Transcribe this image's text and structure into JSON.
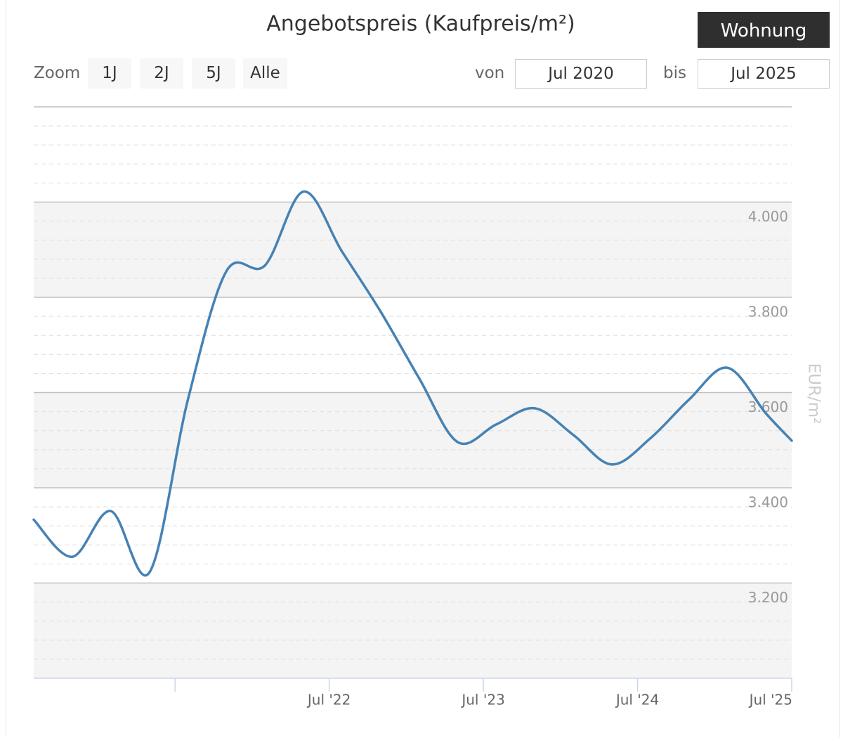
{
  "chart_data": {
    "type": "line",
    "title": "Angebotspreis (Kaufpreis/m²)",
    "y_axis_label": "EUR/m²",
    "x": [
      "2020-08",
      "2020-11",
      "2021-02",
      "2021-05",
      "2021-08",
      "2021-11",
      "2022-02",
      "2022-05",
      "2022-08",
      "2022-11",
      "2023-02",
      "2023-05",
      "2023-08",
      "2023-11",
      "2024-02",
      "2024-05",
      "2024-08",
      "2024-11",
      "2025-02",
      "2025-05",
      "2025-07"
    ],
    "values": [
      3333,
      3255,
      3351,
      3222,
      3585,
      3855,
      3867,
      4022,
      3896,
      3770,
      3630,
      3496,
      3533,
      3567,
      3511,
      3449,
      3504,
      3585,
      3652,
      3556,
      3499
    ],
    "color": "#4682b4",
    "xlim": [
      "2020-08",
      "2025-07"
    ],
    "xticks": [
      {
        "value": "2021-07",
        "label": null
      },
      {
        "value": "2022-07",
        "label": "Jul '22"
      },
      {
        "value": "2023-07",
        "label": "Jul '23"
      },
      {
        "value": "2024-07",
        "label": "Jul '24"
      },
      {
        "value": "2025-07",
        "label": "Jul '25"
      }
    ],
    "ylim": [
      3000,
      4200
    ],
    "yticks": [
      {
        "value": 3200,
        "label": "3.200"
      },
      {
        "value": 3400,
        "label": "3.400"
      },
      {
        "value": 3600,
        "label": "3.600"
      },
      {
        "value": 3800,
        "label": "3.800"
      },
      {
        "value": 4000,
        "label": "4.000"
      }
    ],
    "y_minor_tick_interval": 40,
    "grid": true,
    "alternate_grid_color": "#f4f4f4"
  },
  "controls": {
    "toggle": "Wohnung",
    "zoom_label": "Zoom",
    "zoom_buttons": [
      "1J",
      "2J",
      "5J",
      "Alle"
    ],
    "from_label": "von",
    "from": "Jul 2020",
    "to_label": "bis",
    "to": "Jul 2025"
  }
}
